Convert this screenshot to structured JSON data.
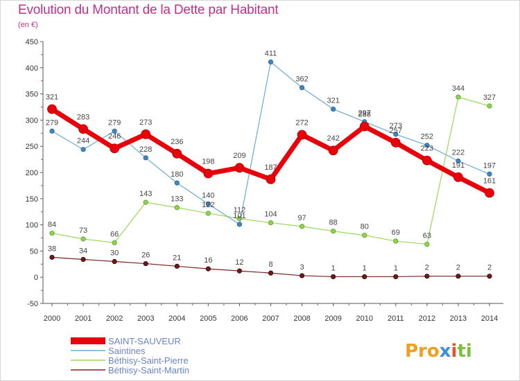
{
  "title": "Evolution du Montant de la Dette par Habitant",
  "subtitle": "(en €)",
  "logo": {
    "p1": "Pro",
    "p2": "x",
    "p3": "i",
    "p4": "ti"
  },
  "chart_data": {
    "type": "line",
    "title": "Evolution du Montant de la Dette par Habitant",
    "ylabel": "(en €)",
    "xlabel": "",
    "ylim": [
      -50,
      450
    ],
    "yticks": [
      -50,
      0,
      50,
      100,
      150,
      200,
      250,
      300,
      350,
      400,
      450
    ],
    "grid": false,
    "legend_position": "bottom-left",
    "x": [
      "2000",
      "2001",
      "2002",
      "2003",
      "2004",
      "2005",
      "2006",
      "2007",
      "2008",
      "2009",
      "2010",
      "2011",
      "2012",
      "2013",
      "2014"
    ],
    "series": [
      {
        "name": "SAINT-SAUVEUR",
        "color": "#e8000b",
        "values": [
          321,
          283,
          246,
          273,
          236,
          198,
          209,
          187,
          272,
          242,
          288,
          257,
          223,
          191,
          161
        ]
      },
      {
        "name": "Saintines",
        "color": "#5b9fd0",
        "values": [
          279,
          244,
          279,
          228,
          180,
          140,
          101,
          411,
          362,
          321,
          297,
          273,
          252,
          222,
          197
        ]
      },
      {
        "name": "Béthisy-Saint-Pierre",
        "color": "#8ed44e",
        "values": [
          84,
          73,
          66,
          143,
          133,
          122,
          112,
          104,
          97,
          88,
          80,
          69,
          63,
          344,
          327
        ]
      },
      {
        "name": "Béthisy-Saint-Martin",
        "color": "#7a2222",
        "values": [
          38,
          34,
          30,
          26,
          21,
          16,
          12,
          8,
          3,
          1,
          1,
          1,
          2,
          2,
          2
        ]
      }
    ]
  }
}
